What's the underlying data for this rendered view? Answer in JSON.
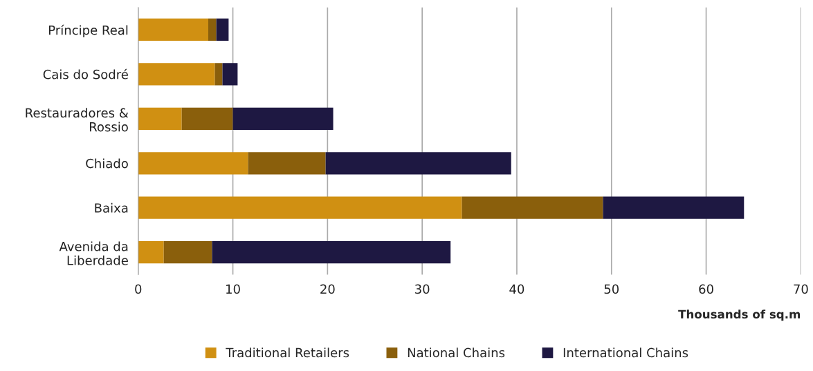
{
  "chart_data": {
    "type": "bar",
    "orientation": "horizontal",
    "stacked": true,
    "xlabel": "Thousands of sq.m",
    "categories": [
      "Príncipe Real",
      "Cais do Sodré",
      "Restauradores &\nRossio",
      "Chiado",
      "Baixa",
      "Avenida da\nLiberdade"
    ],
    "series": [
      {
        "name": "Traditional Retailers",
        "color": "#d09012",
        "values": [
          7.4,
          8.1,
          4.6,
          11.6,
          34.2,
          2.7
        ]
      },
      {
        "name": "National Chains",
        "color": "#8a5f0c",
        "values": [
          0.85,
          0.8,
          5.4,
          8.2,
          14.9,
          5.1
        ]
      },
      {
        "name": "International Chains",
        "color": "#1e1842",
        "values": [
          1.3,
          1.6,
          10.6,
          19.6,
          14.9,
          25.2
        ]
      }
    ],
    "xlim": [
      0,
      70
    ],
    "xticks": [
      0,
      10,
      20,
      30,
      40,
      50,
      60,
      70
    ],
    "grid": "x",
    "legend": "bottom"
  }
}
